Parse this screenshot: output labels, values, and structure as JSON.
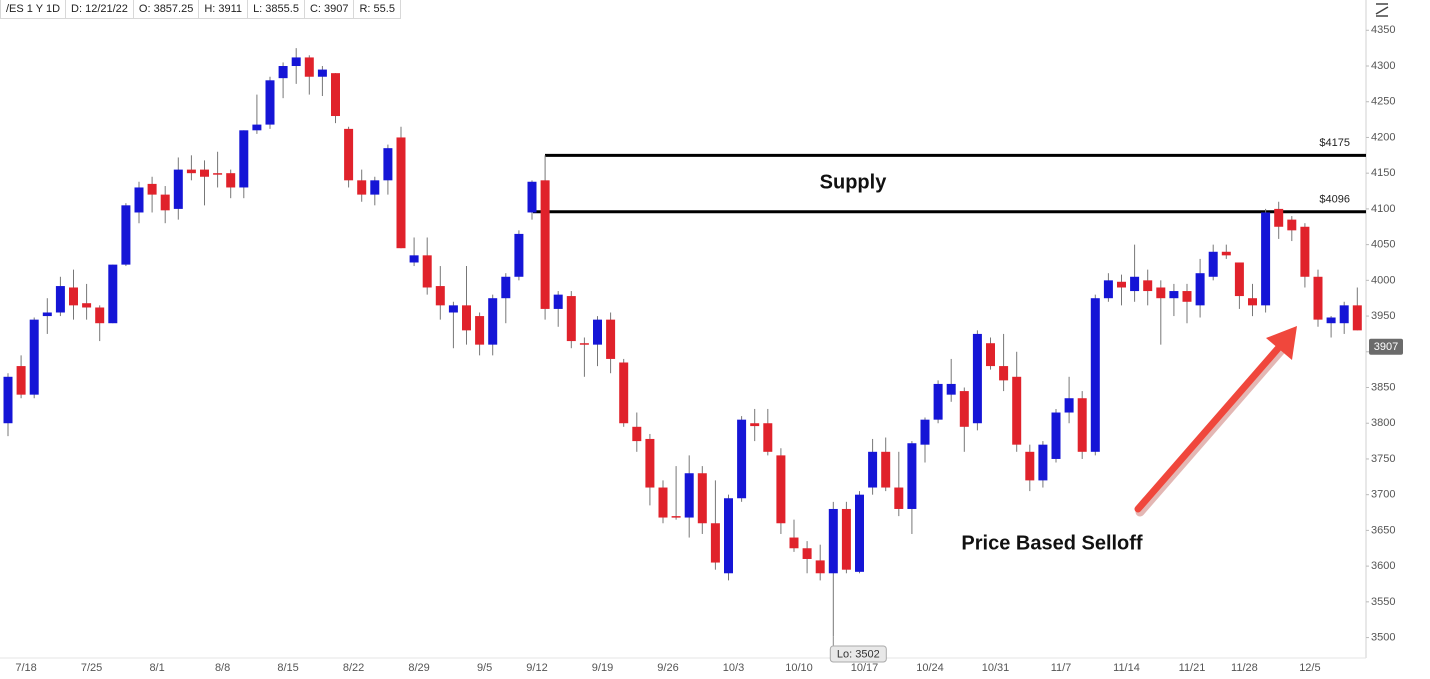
{
  "chart_data": {
    "type": "candlestick",
    "header": [
      "/ES 1 Y 1D",
      "D: 12/21/22",
      "O: 3857.25",
      "H: 3911",
      "L: 3855.5",
      "C: 3907",
      "R: 55.5"
    ],
    "categories": [
      null,
      "7/18",
      null,
      null,
      null,
      null,
      "7/25",
      null,
      null,
      null,
      null,
      "8/1",
      null,
      null,
      null,
      null,
      "8/8",
      null,
      null,
      null,
      null,
      "8/15",
      null,
      null,
      null,
      null,
      "8/22",
      null,
      null,
      null,
      null,
      "8/29",
      null,
      null,
      null,
      null,
      "9/5",
      null,
      null,
      null,
      "9/12",
      null,
      null,
      null,
      null,
      "9/19",
      null,
      null,
      null,
      null,
      "9/26",
      null,
      null,
      null,
      null,
      "10/3",
      null,
      null,
      null,
      null,
      "10/10",
      null,
      null,
      null,
      null,
      "10/17",
      null,
      null,
      null,
      null,
      "10/24",
      null,
      null,
      null,
      null,
      "10/31",
      null,
      null,
      null,
      null,
      "11/7",
      null,
      null,
      null,
      null,
      "11/14",
      null,
      null,
      null,
      null,
      "11/21",
      null,
      null,
      null,
      "11/28",
      null,
      null,
      null,
      null,
      "12/5",
      null,
      null,
      null,
      null
    ],
    "open": [
      3800,
      3880,
      3840,
      3950,
      3955,
      3990,
      3968,
      3962,
      3940,
      4022,
      4095,
      4135,
      4120,
      4100,
      4155,
      4155,
      4150,
      4150,
      4130,
      4210,
      4218,
      4283,
      4300,
      4312,
      4285,
      4290,
      4212,
      4140,
      4120,
      4140,
      4200,
      4025,
      4035,
      3992,
      3955,
      3965,
      3950,
      3910,
      3975,
      4005,
      4095,
      4140,
      3960,
      3978,
      3912,
      3910,
      3945,
      3885,
      3795,
      3778,
      3710,
      3670,
      3668,
      3730,
      3660,
      3590,
      3695,
      3800,
      3800,
      3755,
      3640,
      3625,
      3608,
      3590,
      3680,
      3592,
      3710,
      3760,
      3710,
      3680,
      3770,
      3805,
      3840,
      3845,
      3800,
      3912,
      3880,
      3865,
      3760,
      3720,
      3750,
      3815,
      3835,
      3760,
      3975,
      3998,
      3985,
      4000,
      3990,
      3975,
      3985,
      3965,
      4005,
      4040,
      4025,
      3975,
      3965,
      4100,
      4085,
      4075,
      4005,
      3940,
      3940,
      3965
    ],
    "high": [
      3870,
      3895,
      3948,
      3975,
      4005,
      4015,
      3995,
      3965,
      4022,
      4108,
      4138,
      4145,
      4132,
      4172,
      4175,
      4168,
      4180,
      4155,
      4210,
      4260,
      4285,
      4305,
      4325,
      4315,
      4300,
      4290,
      4215,
      4155,
      4145,
      4190,
      4215,
      4060,
      4060,
      4020,
      3970,
      4020,
      3955,
      3980,
      4010,
      4070,
      4140,
      4175,
      3985,
      3985,
      3920,
      3950,
      3955,
      3890,
      3815,
      3785,
      3720,
      3740,
      3755,
      3740,
      3720,
      3700,
      3810,
      3820,
      3820,
      3765,
      3665,
      3635,
      3630,
      3690,
      3690,
      3705,
      3778,
      3780,
      3760,
      3775,
      3808,
      3860,
      3890,
      3850,
      3930,
      3920,
      3925,
      3900,
      3770,
      3775,
      3820,
      3865,
      3845,
      3980,
      4010,
      4008,
      4050,
      4015,
      4000,
      3995,
      3995,
      4030,
      4050,
      4050,
      4025,
      3995,
      4100,
      4110,
      4090,
      4080,
      4015,
      3950,
      3970,
      3990
    ],
    "low": [
      3782,
      3835,
      3835,
      3925,
      3950,
      3945,
      3945,
      3915,
      3940,
      4020,
      4080,
      4095,
      4080,
      4085,
      4140,
      4105,
      4130,
      4115,
      4115,
      4205,
      4212,
      4255,
      4275,
      4260,
      4258,
      4220,
      4130,
      4110,
      4105,
      4120,
      4045,
      4020,
      3980,
      3945,
      3905,
      3910,
      3895,
      3895,
      3940,
      4000,
      4085,
      3945,
      3935,
      3905,
      3865,
      3880,
      3870,
      3795,
      3760,
      3685,
      3660,
      3665,
      3640,
      3645,
      3595,
      3580,
      3690,
      3775,
      3755,
      3645,
      3620,
      3590,
      3580,
      3502,
      3590,
      3590,
      3700,
      3705,
      3670,
      3645,
      3745,
      3800,
      3830,
      3760,
      3790,
      3875,
      3845,
      3760,
      3705,
      3710,
      3745,
      3800,
      3750,
      3755,
      3970,
      3965,
      3970,
      3965,
      3910,
      3950,
      3940,
      3948,
      4000,
      4030,
      3960,
      3950,
      3955,
      4058,
      4055,
      3990,
      3935,
      3920,
      3925,
      3930
    ],
    "close": [
      3865,
      3840,
      3945,
      3955,
      3992,
      3965,
      3962,
      3940,
      4022,
      4105,
      4130,
      4120,
      4098,
      4155,
      4150,
      4145,
      4148,
      4130,
      4210,
      4218,
      4280,
      4300,
      4312,
      4285,
      4295,
      4230,
      4140,
      4120,
      4140,
      4185,
      4045,
      4035,
      3990,
      3965,
      3965,
      3930,
      3910,
      3975,
      4005,
      4065,
      4138,
      3960,
      3980,
      3915,
      3910,
      3945,
      3890,
      3800,
      3775,
      3710,
      3668,
      3668,
      3730,
      3660,
      3605,
      3695,
      3805,
      3796,
      3760,
      3660,
      3625,
      3610,
      3590,
      3680,
      3595,
      3700,
      3760,
      3710,
      3680,
      3772,
      3805,
      3855,
      3855,
      3795,
      3925,
      3880,
      3860,
      3770,
      3720,
      3770,
      3815,
      3835,
      3760,
      3975,
      4000,
      3990,
      4005,
      3985,
      3975,
      3985,
      3970,
      4010,
      4040,
      4035,
      3978,
      3965,
      4095,
      4075,
      4070,
      4005,
      3945,
      3948,
      3965,
      3930
    ],
    "up_color": "#1515d6",
    "down_color": "#e0222b",
    "ylim": [
      3470,
      4370
    ],
    "yticks": [
      3500,
      3550,
      3600,
      3650,
      3700,
      3750,
      3800,
      3850,
      3900,
      3950,
      4000,
      4050,
      4100,
      4150,
      4200,
      4250,
      4300,
      4350
    ],
    "levels": [
      {
        "value": 4175,
        "label": "$4175"
      },
      {
        "value": 4096,
        "label": "$4096"
      }
    ],
    "low_marker": {
      "value": 3502,
      "label": "Lo: 3502"
    },
    "last_price": 3907,
    "annotations": [
      "Supply",
      "Price Based Selloff"
    ]
  }
}
